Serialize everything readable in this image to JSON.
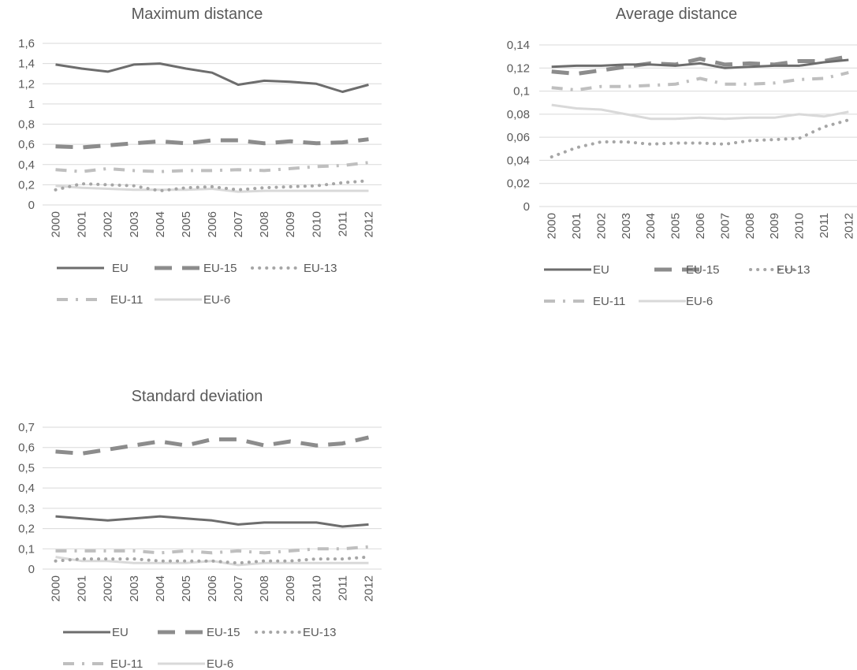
{
  "series_styles": [
    {
      "name": "EU",
      "color": "#6d6d6d",
      "dash": "solid"
    },
    {
      "name": "EU-15",
      "color": "#8c8c8c",
      "dash": "long-dash"
    },
    {
      "name": "EU-13",
      "color": "#a6a6a6",
      "dash": "dot"
    },
    {
      "name": "EU-11",
      "color": "#bfbfbf",
      "dash": "dash-dot"
    },
    {
      "name": "EU-6",
      "color": "#d9d9d9",
      "dash": "solid"
    }
  ],
  "chart_data": [
    {
      "id": "max",
      "type": "line",
      "title": "Maximum distance",
      "categories": [
        "2000",
        "2001",
        "2002",
        "2003",
        "2004",
        "2005",
        "2006",
        "2007",
        "2008",
        "2009",
        "2010",
        "2011",
        "2012"
      ],
      "ylim": [
        0,
        1.6
      ],
      "yticks": [
        "0",
        "0,2",
        "0,4",
        "0,6",
        "0,8",
        "1",
        "1,2",
        "1,4",
        "1,6"
      ],
      "grid": true,
      "legend_position": "bottom",
      "series": [
        {
          "name": "EU",
          "values": [
            1.39,
            1.35,
            1.32,
            1.39,
            1.4,
            1.35,
            1.31,
            1.19,
            1.23,
            1.22,
            1.2,
            1.12,
            1.19
          ]
        },
        {
          "name": "EU-15",
          "values": [
            0.58,
            0.57,
            0.59,
            0.61,
            0.63,
            0.61,
            0.64,
            0.64,
            0.61,
            0.63,
            0.61,
            0.62,
            0.65
          ]
        },
        {
          "name": "EU-13",
          "values": [
            0.15,
            0.21,
            0.2,
            0.19,
            0.14,
            0.17,
            0.18,
            0.15,
            0.17,
            0.18,
            0.19,
            0.22,
            0.24
          ]
        },
        {
          "name": "EU-11",
          "values": [
            0.35,
            0.33,
            0.36,
            0.34,
            0.33,
            0.34,
            0.34,
            0.35,
            0.34,
            0.36,
            0.38,
            0.39,
            0.42
          ]
        },
        {
          "name": "EU-6",
          "values": [
            0.19,
            0.17,
            0.16,
            0.15,
            0.15,
            0.15,
            0.16,
            0.13,
            0.14,
            0.14,
            0.14,
            0.14,
            0.14
          ]
        }
      ]
    },
    {
      "id": "avg",
      "type": "line",
      "title": "Average distance",
      "categories": [
        "2000",
        "2001",
        "2002",
        "2003",
        "2004",
        "2005",
        "2006",
        "2007",
        "2008",
        "2009",
        "2010",
        "2011",
        "2012"
      ],
      "ylim": [
        0,
        0.14
      ],
      "yticks": [
        "0",
        "0,02",
        "0,04",
        "0,06",
        "0,08",
        "0,1",
        "0,12",
        "0,14"
      ],
      "grid": true,
      "legend_position": "bottom",
      "series": [
        {
          "name": "EU",
          "values": [
            0.121,
            0.122,
            0.122,
            0.123,
            0.123,
            0.122,
            0.124,
            0.12,
            0.121,
            0.122,
            0.122,
            0.125,
            0.127
          ]
        },
        {
          "name": "EU-15",
          "values": [
            0.117,
            0.115,
            0.118,
            0.121,
            0.124,
            0.123,
            0.128,
            0.123,
            0.124,
            0.123,
            0.126,
            0.126,
            0.13
          ]
        },
        {
          "name": "EU-13",
          "values": [
            0.043,
            0.051,
            0.056,
            0.056,
            0.054,
            0.055,
            0.055,
            0.054,
            0.057,
            0.058,
            0.059,
            0.069,
            0.075
          ]
        },
        {
          "name": "EU-11",
          "values": [
            0.103,
            0.101,
            0.104,
            0.104,
            0.105,
            0.106,
            0.111,
            0.106,
            0.106,
            0.107,
            0.11,
            0.111,
            0.116
          ]
        },
        {
          "name": "EU-6",
          "values": [
            0.088,
            0.085,
            0.084,
            0.08,
            0.076,
            0.076,
            0.077,
            0.076,
            0.077,
            0.077,
            0.08,
            0.078,
            0.082
          ]
        }
      ]
    },
    {
      "id": "std",
      "type": "line",
      "title": "Standard deviation",
      "categories": [
        "2000",
        "2001",
        "2002",
        "2003",
        "2004",
        "2005",
        "2006",
        "2007",
        "2008",
        "2009",
        "2010",
        "2011",
        "2012"
      ],
      "ylim": [
        0,
        0.7
      ],
      "yticks": [
        "0",
        "0,1",
        "0,2",
        "0,3",
        "0,4",
        "0,5",
        "0,6",
        "0,7"
      ],
      "grid": true,
      "legend_position": "bottom",
      "series": [
        {
          "name": "EU",
          "values": [
            0.26,
            0.25,
            0.24,
            0.25,
            0.26,
            0.25,
            0.24,
            0.22,
            0.23,
            0.23,
            0.23,
            0.21,
            0.22
          ]
        },
        {
          "name": "EU-15",
          "values": [
            0.58,
            0.57,
            0.59,
            0.61,
            0.63,
            0.61,
            0.64,
            0.64,
            0.61,
            0.63,
            0.61,
            0.62,
            0.65
          ]
        },
        {
          "name": "EU-13",
          "values": [
            0.04,
            0.05,
            0.05,
            0.05,
            0.04,
            0.04,
            0.04,
            0.03,
            0.04,
            0.04,
            0.05,
            0.05,
            0.06
          ]
        },
        {
          "name": "EU-11",
          "values": [
            0.09,
            0.09,
            0.09,
            0.09,
            0.08,
            0.09,
            0.08,
            0.09,
            0.08,
            0.09,
            0.1,
            0.1,
            0.11
          ]
        },
        {
          "name": "EU-6",
          "values": [
            0.06,
            0.04,
            0.04,
            0.03,
            0.03,
            0.03,
            0.04,
            0.02,
            0.03,
            0.03,
            0.03,
            0.03,
            0.03
          ]
        }
      ]
    }
  ]
}
